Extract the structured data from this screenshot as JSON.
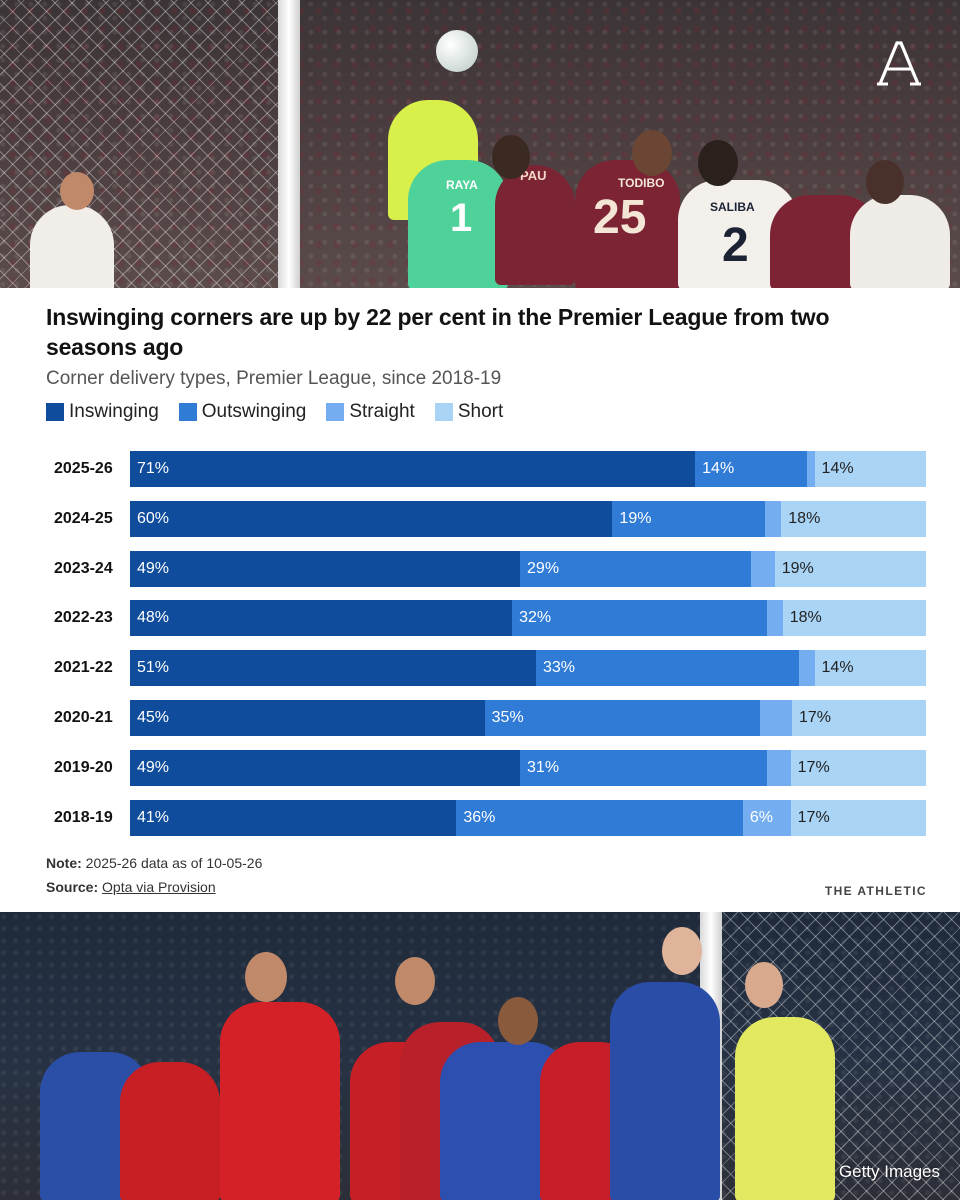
{
  "colors": {
    "inswinging": "#0f4c9c",
    "outswinging": "#2f7bd6",
    "straight": "#74aef0",
    "short": "#a9d4f5",
    "label_on_dark": "#ffffff",
    "label_on_light": "#222222"
  },
  "top_photo": {
    "shirt_numbers": [
      "1",
      "25",
      "2"
    ],
    "shirt_names": [
      "RAYA",
      "PAU",
      "TODIBO",
      "SALIBA"
    ],
    "logo": "a-logo-icon"
  },
  "bottom_photo": {
    "credit": "Getty Images"
  },
  "chart_data": {
    "type": "bar",
    "stacked": true,
    "orientation": "horizontal",
    "title": "Inswinging corners are up by 22 per cent in the Premier League from two seasons ago",
    "subtitle": "Corner delivery types, Premier League, since 2018-19",
    "legend": [
      "Inswinging",
      "Outswinging",
      "Straight",
      "Short"
    ],
    "legend_position": "top-left",
    "categories": [
      "2025-26",
      "2024-25",
      "2023-24",
      "2022-23",
      "2021-22",
      "2020-21",
      "2019-20",
      "2018-19"
    ],
    "series": [
      {
        "name": "Inswinging",
        "values": [
          71,
          60,
          49,
          48,
          51,
          45,
          49,
          41
        ],
        "labels": [
          "71%",
          "60%",
          "49%",
          "48%",
          "51%",
          "45%",
          "49%",
          "41%"
        ]
      },
      {
        "name": "Outswinging",
        "values": [
          14,
          19,
          29,
          32,
          33,
          35,
          31,
          36
        ],
        "labels": [
          "14%",
          "19%",
          "29%",
          "32%",
          "33%",
          "35%",
          "31%",
          "36%"
        ]
      },
      {
        "name": "Straight",
        "values": [
          1,
          2,
          3,
          2,
          2,
          4,
          3,
          6
        ],
        "labels": [
          "",
          "",
          "",
          "",
          "",
          "",
          "",
          "6%"
        ]
      },
      {
        "name": "Short",
        "values": [
          14,
          18,
          19,
          18,
          14,
          17,
          17,
          17
        ],
        "labels": [
          "14%",
          "18%",
          "19%",
          "18%",
          "14%",
          "17%",
          "17%",
          "17%"
        ]
      }
    ],
    "xlim": [
      0,
      100
    ],
    "grid": false
  },
  "footer": {
    "note_label": "Note:",
    "note_text": "2025-26 data as of 10-05-26",
    "source_label": "Source:",
    "source_text": "Opta via Provision",
    "brand": "THE ATHLETIC"
  }
}
